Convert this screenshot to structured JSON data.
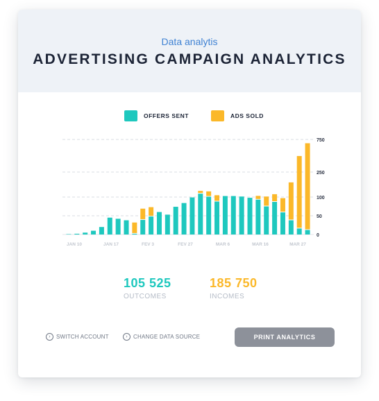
{
  "header": {
    "subtitle": "Data analytis",
    "title": "ADVERTISING CAMPAIGN ANALYTICS"
  },
  "legend": [
    {
      "label": "OFFERS SENT",
      "color": "#1ec8be"
    },
    {
      "label": "ADS SOLD",
      "color": "#fbb829"
    }
  ],
  "chart_data": {
    "type": "bar",
    "stacked": true,
    "x_tick_labels": [
      "JAN 10",
      "JAN 17",
      "FEV 3",
      "FEV 27",
      "MAR 6",
      "MAR 16",
      "MAR 27"
    ],
    "y_tick_labels": [
      "750",
      "250",
      "100",
      "50",
      "0"
    ],
    "y_ticks": [
      750,
      250,
      100,
      50,
      0
    ],
    "grid": true,
    "series": [
      {
        "name": "OFFERS SENT",
        "color": "#1ec8be",
        "values": [
          1,
          2,
          5,
          10,
          20,
          45,
          42,
          38,
          2,
          39,
          48,
          60,
          53,
          74,
          84,
          99,
          120,
          102,
          88,
          106,
          106,
          103,
          98,
          93,
          75,
          87,
          59,
          38,
          16,
          12
        ]
      },
      {
        "name": "ADS SOLD",
        "color": "#fbb829",
        "values": [
          0,
          0,
          0,
          0,
          0,
          0,
          0,
          0,
          30,
          30,
          25,
          0,
          0,
          0,
          0,
          0,
          17,
          32,
          23,
          0,
          0,
          0,
          0,
          14,
          28,
          30,
          38,
          150,
          480,
          680
        ]
      }
    ]
  },
  "stats": {
    "outcomes_value": "105 525",
    "outcomes_label": "OUTCOMES",
    "incomes_value": "185 750",
    "incomes_label": "INCOMES",
    "outcomes_color": "#1ec8be",
    "incomes_color": "#fbb829"
  },
  "footer": {
    "switch_account": "SWITCH ACCOUNT",
    "change_source": "CHANGE DATA SOURCE",
    "print_button": "PRINT ANALYTICS",
    "link_icon": "chevron-right-circle-icon"
  }
}
